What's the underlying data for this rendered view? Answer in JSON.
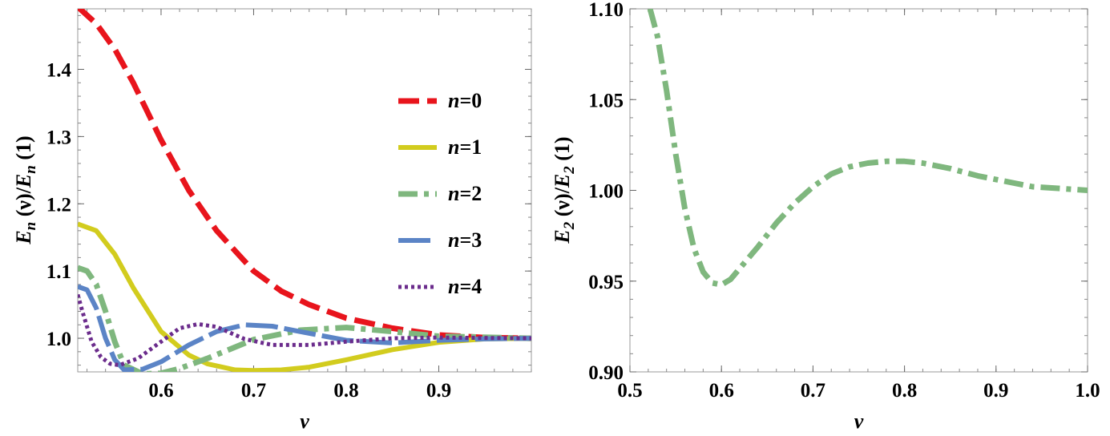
{
  "chart_data": [
    {
      "type": "line",
      "xlabel": "ν",
      "ylabel_parts": [
        "E",
        "n",
        " (ν)/",
        "E",
        "n",
        " (1)"
      ],
      "xlim": [
        0.51,
        1.0
      ],
      "ylim": [
        0.95,
        1.49
      ],
      "xticks": [
        0.6,
        0.7,
        0.8,
        0.9
      ],
      "xtick_labels": [
        "0.6",
        "0.7",
        "0.8",
        "0.9"
      ],
      "yticks": [
        1.0,
        1.1,
        1.2,
        1.3,
        1.4
      ],
      "ytick_labels": [
        "1.0",
        "1.1",
        "1.2",
        "1.3",
        "1.4"
      ],
      "legend_position": "right",
      "series": [
        {
          "name": "n=0",
          "n_label": "n",
          "eq_label": "=0",
          "color": "#e8141c",
          "style": "dashed",
          "x": [
            0.51,
            0.53,
            0.55,
            0.57,
            0.6,
            0.63,
            0.66,
            0.7,
            0.73,
            0.76,
            0.8,
            0.85,
            0.9,
            0.95,
            1.0
          ],
          "y": [
            1.493,
            1.468,
            1.43,
            1.38,
            1.295,
            1.22,
            1.16,
            1.1,
            1.07,
            1.05,
            1.03,
            1.015,
            1.005,
            1.001,
            1.0
          ]
        },
        {
          "name": "n=1",
          "n_label": "n",
          "eq_label": "=1",
          "color": "#d2cc1e",
          "style": "solid",
          "x": [
            0.51,
            0.53,
            0.55,
            0.57,
            0.6,
            0.63,
            0.65,
            0.68,
            0.7,
            0.73,
            0.76,
            0.8,
            0.85,
            0.9,
            0.95,
            1.0
          ],
          "y": [
            1.17,
            1.16,
            1.125,
            1.075,
            1.01,
            0.975,
            0.962,
            0.953,
            0.952,
            0.953,
            0.957,
            0.968,
            0.983,
            0.994,
            0.999,
            1.0
          ]
        },
        {
          "name": "n=2",
          "n_label": "n",
          "eq_label": "=2",
          "color": "#7fb77e",
          "style": "dashdot",
          "x": [
            0.51,
            0.52,
            0.53,
            0.54,
            0.55,
            0.56,
            0.58,
            0.6,
            0.62,
            0.65,
            0.7,
            0.75,
            0.8,
            0.85,
            0.9,
            1.0
          ],
          "y": [
            1.105,
            1.1,
            1.08,
            1.04,
            0.995,
            0.96,
            0.947,
            0.948,
            0.955,
            0.97,
            0.998,
            1.012,
            1.016,
            1.01,
            1.003,
            1.0
          ]
        },
        {
          "name": "n=3",
          "n_label": "n",
          "eq_label": "=3",
          "color": "#5b84c6",
          "style": "longdash",
          "x": [
            0.51,
            0.52,
            0.53,
            0.54,
            0.55,
            0.56,
            0.58,
            0.6,
            0.63,
            0.66,
            0.69,
            0.72,
            0.75,
            0.8,
            0.85,
            0.9,
            0.95,
            1.0
          ],
          "y": [
            1.077,
            1.072,
            1.045,
            1.0,
            0.968,
            0.953,
            0.954,
            0.965,
            0.99,
            1.01,
            1.02,
            1.018,
            1.01,
            0.997,
            0.993,
            0.997,
            0.999,
            1.0
          ]
        },
        {
          "name": "n=4",
          "n_label": "n",
          "eq_label": "=4",
          "color": "#6b2c8c",
          "style": "dotted",
          "x": [
            0.51,
            0.515,
            0.525,
            0.535,
            0.545,
            0.555,
            0.575,
            0.6,
            0.62,
            0.64,
            0.66,
            0.69,
            0.72,
            0.76,
            0.8,
            0.85,
            0.9,
            1.0
          ],
          "y": [
            1.065,
            1.04,
            0.995,
            0.972,
            0.962,
            0.96,
            0.97,
            0.995,
            1.015,
            1.021,
            1.017,
            0.999,
            0.99,
            0.99,
            0.995,
            1.0,
            1.001,
            1.0
          ]
        }
      ]
    },
    {
      "type": "line",
      "xlabel": "ν",
      "ylabel_parts": [
        "E",
        "2",
        " (ν)/",
        "E",
        "2",
        " (1)"
      ],
      "xlim": [
        0.5,
        1.0
      ],
      "ylim": [
        0.9,
        1.1
      ],
      "xticks": [
        0.5,
        0.6,
        0.7,
        0.8,
        0.9,
        1.0
      ],
      "xtick_labels": [
        "0.5",
        "0.6",
        "0.7",
        "0.8",
        "0.9",
        "1.0"
      ],
      "yticks": [
        0.9,
        0.95,
        1.0,
        1.05,
        1.1
      ],
      "ytick_labels": [
        "0.90",
        "0.95",
        "1.00",
        "1.05",
        "1.10"
      ],
      "series": [
        {
          "name": "n=2",
          "color": "#7fb77e",
          "style": "dashdot",
          "x": [
            0.522,
            0.53,
            0.54,
            0.55,
            0.56,
            0.57,
            0.58,
            0.59,
            0.6,
            0.61,
            0.62,
            0.64,
            0.66,
            0.68,
            0.7,
            0.72,
            0.74,
            0.76,
            0.78,
            0.8,
            0.82,
            0.85,
            0.88,
            0.91,
            0.94,
            0.97,
            1.0
          ],
          "y": [
            1.1,
            1.085,
            1.055,
            1.02,
            0.99,
            0.968,
            0.955,
            0.949,
            0.948,
            0.951,
            0.957,
            0.969,
            0.982,
            0.993,
            1.002,
            1.009,
            1.013,
            1.015,
            1.016,
            1.016,
            1.015,
            1.012,
            1.008,
            1.005,
            1.002,
            1.001,
            1.0
          ]
        }
      ]
    }
  ]
}
